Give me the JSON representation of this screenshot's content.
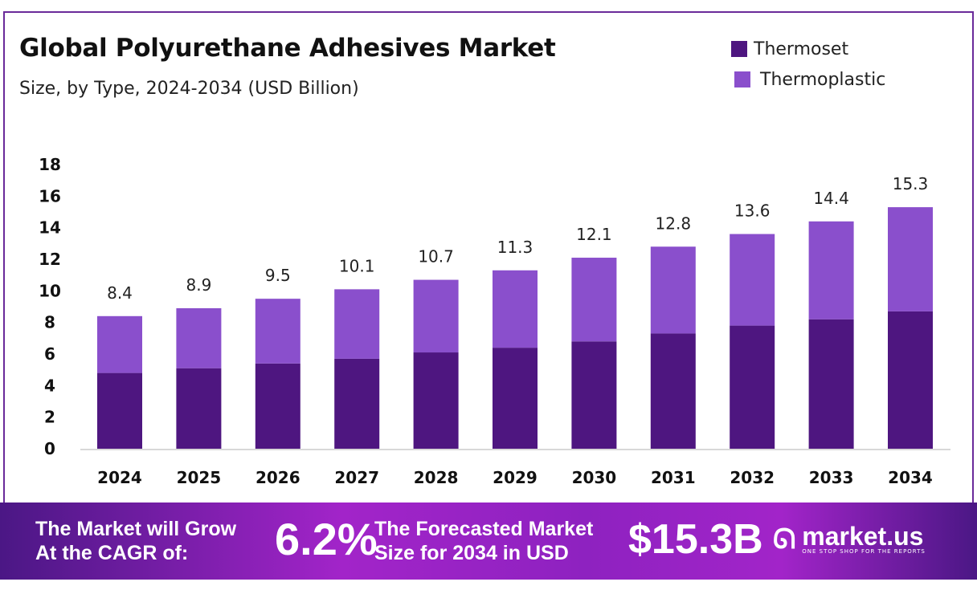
{
  "chart_data": {
    "type": "bar",
    "stacked": true,
    "title": "Global Polyurethane Adhesives Market",
    "subtitle": "Size, by Type, 2024-2034 (USD Billion)",
    "categories": [
      "2024",
      "2025",
      "2026",
      "2027",
      "2028",
      "2029",
      "2030",
      "2031",
      "2032",
      "2033",
      "2034"
    ],
    "series": [
      {
        "name": "Thermoset",
        "color": "#4e1680",
        "values": [
          4.8,
          5.1,
          5.4,
          5.7,
          6.1,
          6.4,
          6.8,
          7.3,
          7.8,
          8.2,
          8.7
        ]
      },
      {
        "name": "Thermoplastic",
        "color": "#8a4fcc",
        "values": [
          3.6,
          3.8,
          4.1,
          4.4,
          4.6,
          4.9,
          5.3,
          5.5,
          5.8,
          6.2,
          6.6
        ]
      }
    ],
    "totals": [
      "8.4",
      "8.9",
      "9.5",
      "10.1",
      "10.7",
      "11.3",
      "12.1",
      "12.8",
      "13.6",
      "14.4",
      "15.3"
    ],
    "ylim": [
      0,
      18
    ],
    "yticks": [
      "0",
      "2",
      "4",
      "6",
      "8",
      "10",
      "12",
      "14",
      "16",
      "18"
    ],
    "grid": false,
    "legend_position": "top-right"
  },
  "footer": {
    "cagr_text_1": "The Market will Grow",
    "cagr_text_2": "At the CAGR of:",
    "cagr_value": "6.2%",
    "forecast_text_1": "The Forecasted Market",
    "forecast_text_2": "Size for 2034 in USD",
    "forecast_value": "$15.3B",
    "logo_name": "market.us",
    "logo_tagline": "ONE STOP SHOP FOR THE REPORTS"
  }
}
